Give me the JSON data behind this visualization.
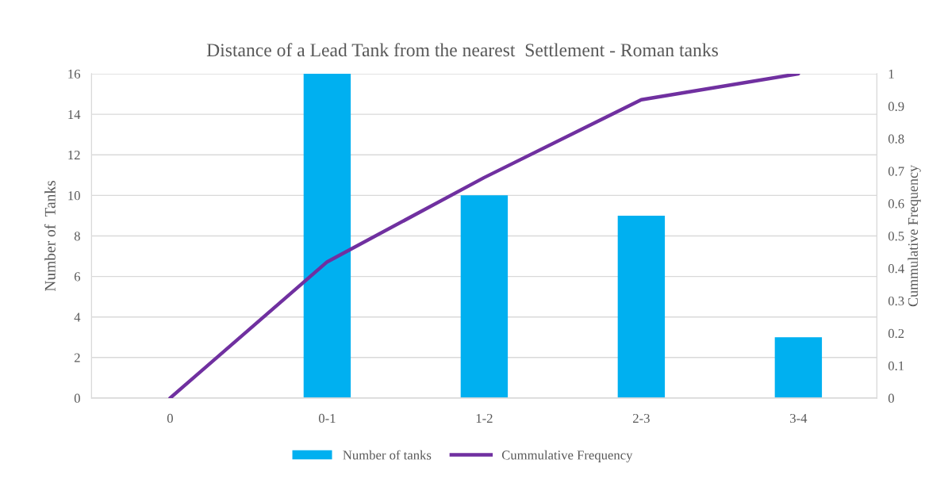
{
  "chart_data": {
    "type": "bar",
    "title": "Distance of a Lead Tank from the nearest  Settlement - Roman tanks",
    "categories": [
      "0",
      "0-1",
      "1-2",
      "2-3",
      "3-4"
    ],
    "series": [
      {
        "name": "Number of tanks",
        "color": "#00b0f0",
        "values": [
          0,
          16,
          10,
          9,
          3
        ]
      },
      {
        "name": "Cummulative Frequency",
        "type": "line",
        "axis": "y2",
        "color": "#7030a0",
        "values": [
          0,
          0.42,
          0.68,
          0.92,
          1
        ]
      }
    ],
    "ylabel": "Number of  Tanks",
    "y2label": "Cummulative Frequency",
    "ylim": [
      0,
      16
    ],
    "yticks": [
      0,
      2,
      4,
      6,
      8,
      10,
      12,
      14,
      16
    ],
    "y2lim": [
      0,
      1
    ],
    "y2ticks": [
      0,
      0.1,
      0.2,
      0.3,
      0.4,
      0.5,
      0.6,
      0.7,
      0.8,
      0.9,
      1
    ],
    "grid": "y",
    "legend": "bottom",
    "marker": "none",
    "line_style": "solid"
  }
}
